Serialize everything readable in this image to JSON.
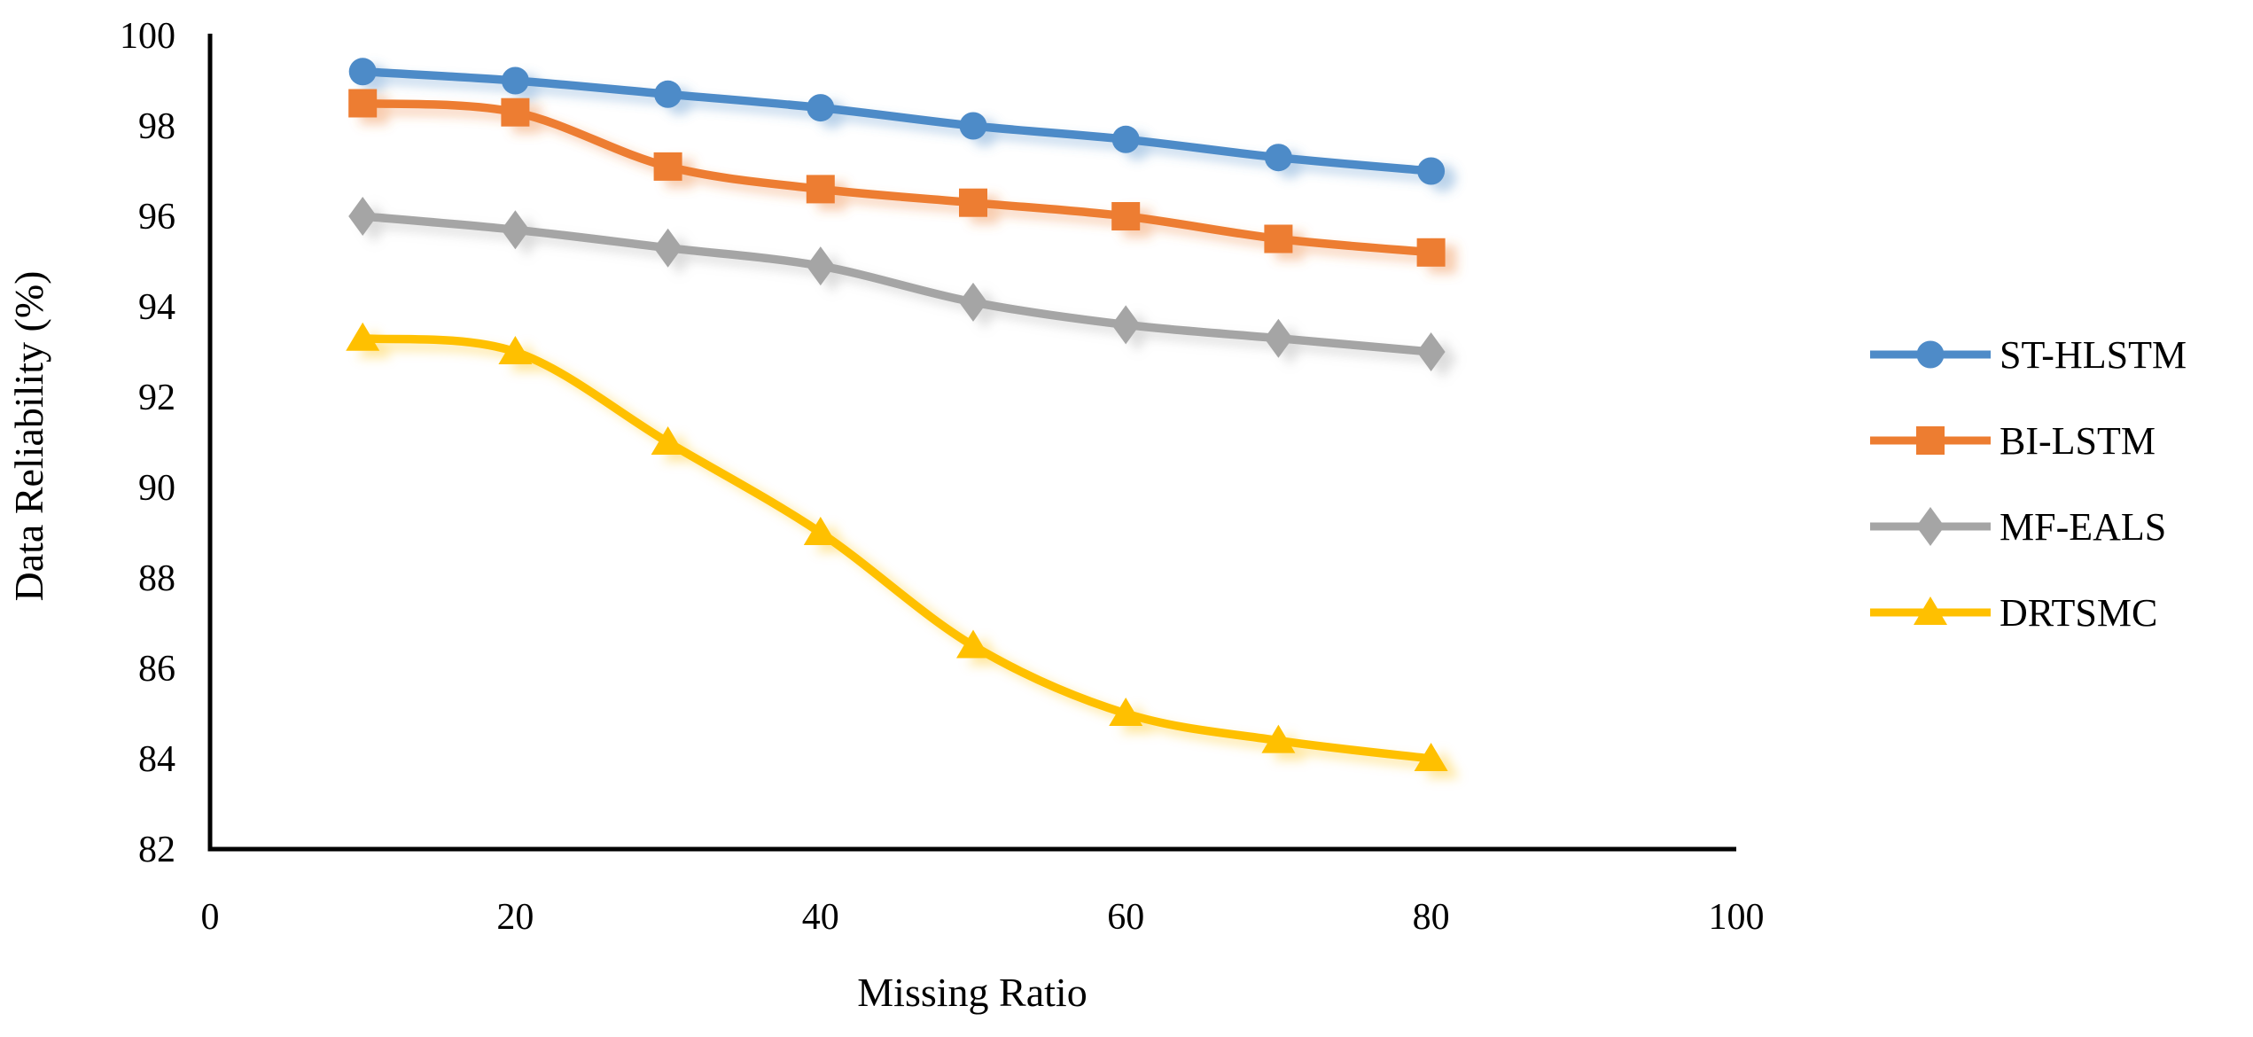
{
  "chart_data": {
    "type": "line",
    "title": "",
    "xlabel": "Missing Ratio",
    "ylabel": "Data Reliability (%)",
    "xlim": [
      0,
      100
    ],
    "ylim": [
      82,
      100
    ],
    "x_ticks": [
      0,
      20,
      40,
      60,
      80,
      100
    ],
    "y_ticks": [
      82,
      84,
      86,
      88,
      90,
      92,
      94,
      96,
      98,
      100
    ],
    "grid": false,
    "legend_position": "right",
    "line_style": "smooth",
    "x": [
      10,
      20,
      30,
      40,
      50,
      60,
      70,
      80
    ],
    "series": [
      {
        "name": "ST-HLSTM",
        "color": "#4E8BC8",
        "marker": "circle",
        "values": [
          99.2,
          99.0,
          98.7,
          98.4,
          98.0,
          97.7,
          97.3,
          97.0
        ]
      },
      {
        "name": "BI-LSTM",
        "color": "#ED7D31",
        "marker": "square",
        "values": [
          98.5,
          98.3,
          97.1,
          96.6,
          96.3,
          96.0,
          95.5,
          95.2
        ]
      },
      {
        "name": "MF-EALS",
        "color": "#A5A5A5",
        "marker": "diamond",
        "values": [
          96.0,
          95.7,
          95.3,
          94.9,
          94.1,
          93.6,
          93.3,
          93.0
        ]
      },
      {
        "name": "DRTSMC",
        "color": "#FFC000",
        "marker": "triangle",
        "values": [
          93.3,
          93.0,
          91.0,
          89.0,
          86.5,
          85.0,
          84.4,
          84.0
        ]
      }
    ],
    "axis_color": "#000000"
  }
}
